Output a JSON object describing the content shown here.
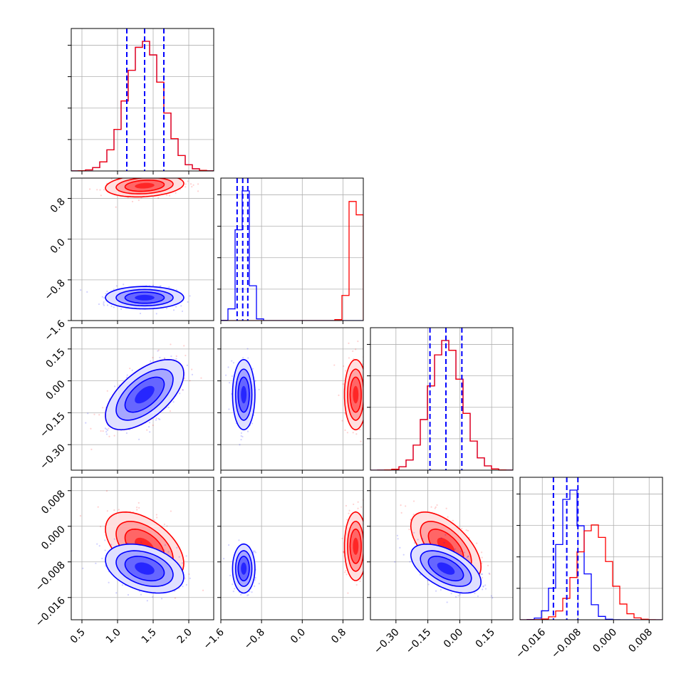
{
  "chart_data": {
    "type": "scatter",
    "subtype": "corner-plot",
    "title": "",
    "grid": true,
    "legend": "none",
    "colors": {
      "blue": "#0000ff",
      "red": "#ff0000",
      "grid": "#b0b0b0",
      "frame": "#000000"
    },
    "parameters": [
      {
        "range": [
          0.35,
          2.35
        ],
        "ticks": [
          0.5,
          1.0,
          1.5,
          2.0
        ],
        "tick_labels": [
          "0.5",
          "1.0",
          "1.5",
          "2.0"
        ]
      },
      {
        "range": [
          -1.6,
          1.2
        ],
        "ticks": [
          -1.6,
          -0.8,
          0.0,
          0.8
        ],
        "tick_labels": [
          "−1.6",
          "−0.8",
          "0.0",
          "0.8"
        ]
      },
      {
        "range": [
          -0.42,
          0.25
        ],
        "ticks": [
          -0.3,
          -0.15,
          0.0,
          0.15
        ],
        "tick_labels": [
          "−0.30",
          "−0.15",
          "0.00",
          "0.15"
        ]
      },
      {
        "range": [
          -0.021,
          0.011
        ],
        "ticks": [
          -0.016,
          -0.008,
          0.0,
          0.008
        ],
        "tick_labels": [
          "−0.016",
          "−0.008",
          "0.000",
          "0.008"
        ]
      }
    ],
    "series": [
      {
        "color": "#0000ff",
        "means": [
          1.38,
          -1.15,
          -0.065,
          -0.0095
        ],
        "sigmas": [
          0.25,
          0.1,
          0.075,
          0.0025
        ],
        "corr": [
          [
            1,
            0,
            0.6,
            -0.35
          ],
          [
            0,
            1,
            0,
            0
          ],
          [
            0.6,
            0,
            1,
            -0.55
          ],
          [
            -0.35,
            0,
            -0.55,
            1
          ]
        ],
        "quantiles": [
          [
            1.13,
            1.38,
            1.65
          ],
          [
            -1.28,
            -1.17,
            -1.07
          ],
          [
            -0.14,
            -0.065,
            0.01
          ],
          [
            -0.0135,
            -0.0105,
            -0.008
          ]
        ]
      },
      {
        "color": "#ff0000",
        "means": [
          1.38,
          1.05,
          -0.065,
          -0.0045
        ],
        "sigmas": [
          0.25,
          0.1,
          0.075,
          0.0035
        ],
        "corr": [
          [
            1,
            0.2,
            0.6,
            -0.5
          ],
          [
            0.2,
            1,
            0,
            0
          ],
          [
            0.6,
            0,
            1,
            -0.6
          ],
          [
            -0.5,
            0,
            -0.6,
            1
          ]
        ]
      }
    ]
  }
}
